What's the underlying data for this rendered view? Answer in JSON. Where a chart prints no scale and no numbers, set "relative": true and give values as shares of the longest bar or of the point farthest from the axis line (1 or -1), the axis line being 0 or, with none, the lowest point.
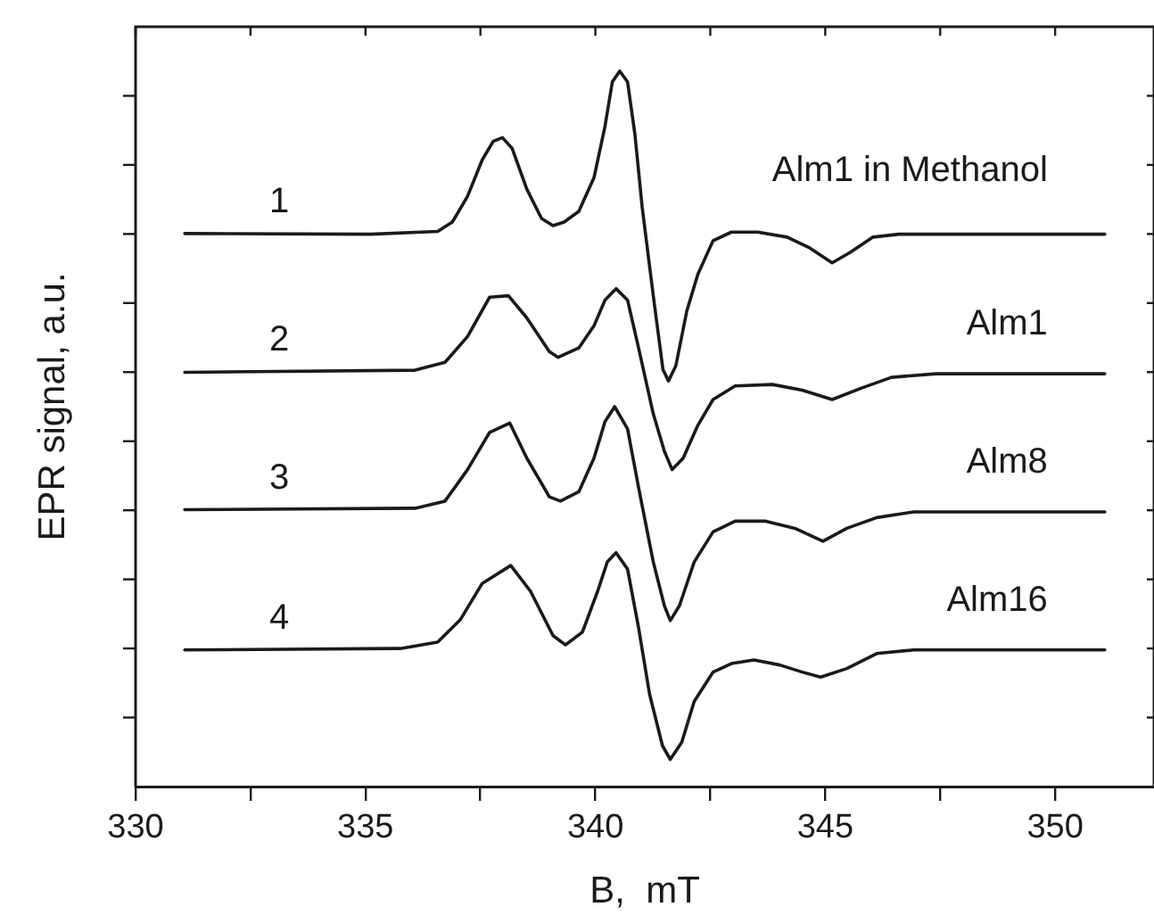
{
  "chart_data": {
    "type": "line",
    "relative": true,
    "xlabel": "B,  mT",
    "ylabel": "EPR signal, a.u.",
    "xlim": [
      330,
      352.15
    ],
    "xticks": [
      330,
      {
        "value": 332.5,
        "label": null
      },
      335,
      {
        "value": 337.5,
        "label": null
      },
      340,
      {
        "value": 342.5,
        "label": null
      },
      345,
      {
        "value": 347.5,
        "label": null
      },
      350
    ],
    "grid": false,
    "legend": false,
    "marker": "none",
    "line_style": "solid",
    "series": [
      {
        "name": "1",
        "color": "#1a1a1a",
        "x": [
          331.07,
          335.11,
          336.57,
          336.89,
          337.22,
          337.54,
          337.78,
          337.98,
          338.19,
          338.51,
          338.83,
          339.08,
          339.32,
          339.64,
          339.97,
          340.21,
          340.37,
          340.53,
          340.7,
          340.86,
          341.02,
          341.26,
          341.47,
          341.59,
          341.75,
          341.99,
          342.23,
          342.56,
          342.96,
          343.53,
          344.17,
          344.66,
          345.15,
          345.55,
          346.04,
          346.6,
          351.08
        ],
        "values": [
          0.773,
          0.772,
          0.776,
          0.789,
          0.825,
          0.876,
          0.902,
          0.907,
          0.892,
          0.835,
          0.794,
          0.784,
          0.789,
          0.804,
          0.851,
          0.923,
          0.985,
          1.0,
          0.985,
          0.912,
          0.809,
          0.686,
          0.583,
          0.567,
          0.588,
          0.665,
          0.716,
          0.763,
          0.775,
          0.775,
          0.768,
          0.753,
          0.732,
          0.747,
          0.768,
          0.772,
          0.772
        ]
      },
      {
        "name": "2",
        "color": "#1a1a1a",
        "x": [
          331.07,
          336.08,
          336.73,
          337.22,
          337.7,
          338.11,
          338.51,
          339.0,
          339.19,
          339.64,
          339.97,
          340.21,
          340.45,
          340.7,
          340.94,
          341.26,
          341.5,
          341.67,
          341.91,
          342.23,
          342.56,
          343.04,
          343.85,
          344.5,
          345.15,
          345.79,
          346.44,
          347.41,
          351.08
        ],
        "values": [
          0.579,
          0.582,
          0.593,
          0.629,
          0.684,
          0.686,
          0.655,
          0.608,
          0.6,
          0.613,
          0.644,
          0.68,
          0.696,
          0.68,
          0.613,
          0.521,
          0.469,
          0.443,
          0.459,
          0.505,
          0.541,
          0.56,
          0.562,
          0.554,
          0.541,
          0.557,
          0.572,
          0.577,
          0.577
        ]
      },
      {
        "name": "3",
        "color": "#1a1a1a",
        "x": [
          331.07,
          336.08,
          336.73,
          337.22,
          337.7,
          338.14,
          338.51,
          339.0,
          339.24,
          339.64,
          339.97,
          340.21,
          340.42,
          340.7,
          340.94,
          341.26,
          341.5,
          341.63,
          341.83,
          342.15,
          342.56,
          343.04,
          343.69,
          344.34,
          344.95,
          345.47,
          346.12,
          346.93,
          351.08
        ],
        "values": [
          0.387,
          0.389,
          0.399,
          0.443,
          0.495,
          0.508,
          0.459,
          0.405,
          0.399,
          0.412,
          0.459,
          0.51,
          0.531,
          0.5,
          0.418,
          0.314,
          0.253,
          0.232,
          0.253,
          0.314,
          0.356,
          0.371,
          0.371,
          0.361,
          0.343,
          0.361,
          0.376,
          0.384,
          0.384
        ]
      },
      {
        "name": "4",
        "color": "#1a1a1a",
        "x": [
          331.07,
          335.76,
          336.57,
          337.06,
          337.54,
          338.16,
          338.59,
          339.08,
          339.35,
          339.72,
          340.05,
          340.26,
          340.45,
          340.7,
          340.94,
          341.18,
          341.46,
          341.63,
          341.88,
          342.15,
          342.56,
          342.96,
          343.45,
          344.01,
          344.5,
          344.9,
          345.47,
          346.12,
          346.93,
          351.08
        ],
        "values": [
          0.191,
          0.193,
          0.202,
          0.233,
          0.284,
          0.309,
          0.273,
          0.211,
          0.198,
          0.216,
          0.273,
          0.314,
          0.327,
          0.304,
          0.222,
          0.129,
          0.057,
          0.038,
          0.062,
          0.119,
          0.16,
          0.172,
          0.177,
          0.17,
          0.16,
          0.153,
          0.165,
          0.186,
          0.191,
          0.191
        ]
      }
    ],
    "annotations": [
      "Alm1 in Methanol",
      "Alm1",
      "Alm8",
      "Alm16"
    ]
  }
}
